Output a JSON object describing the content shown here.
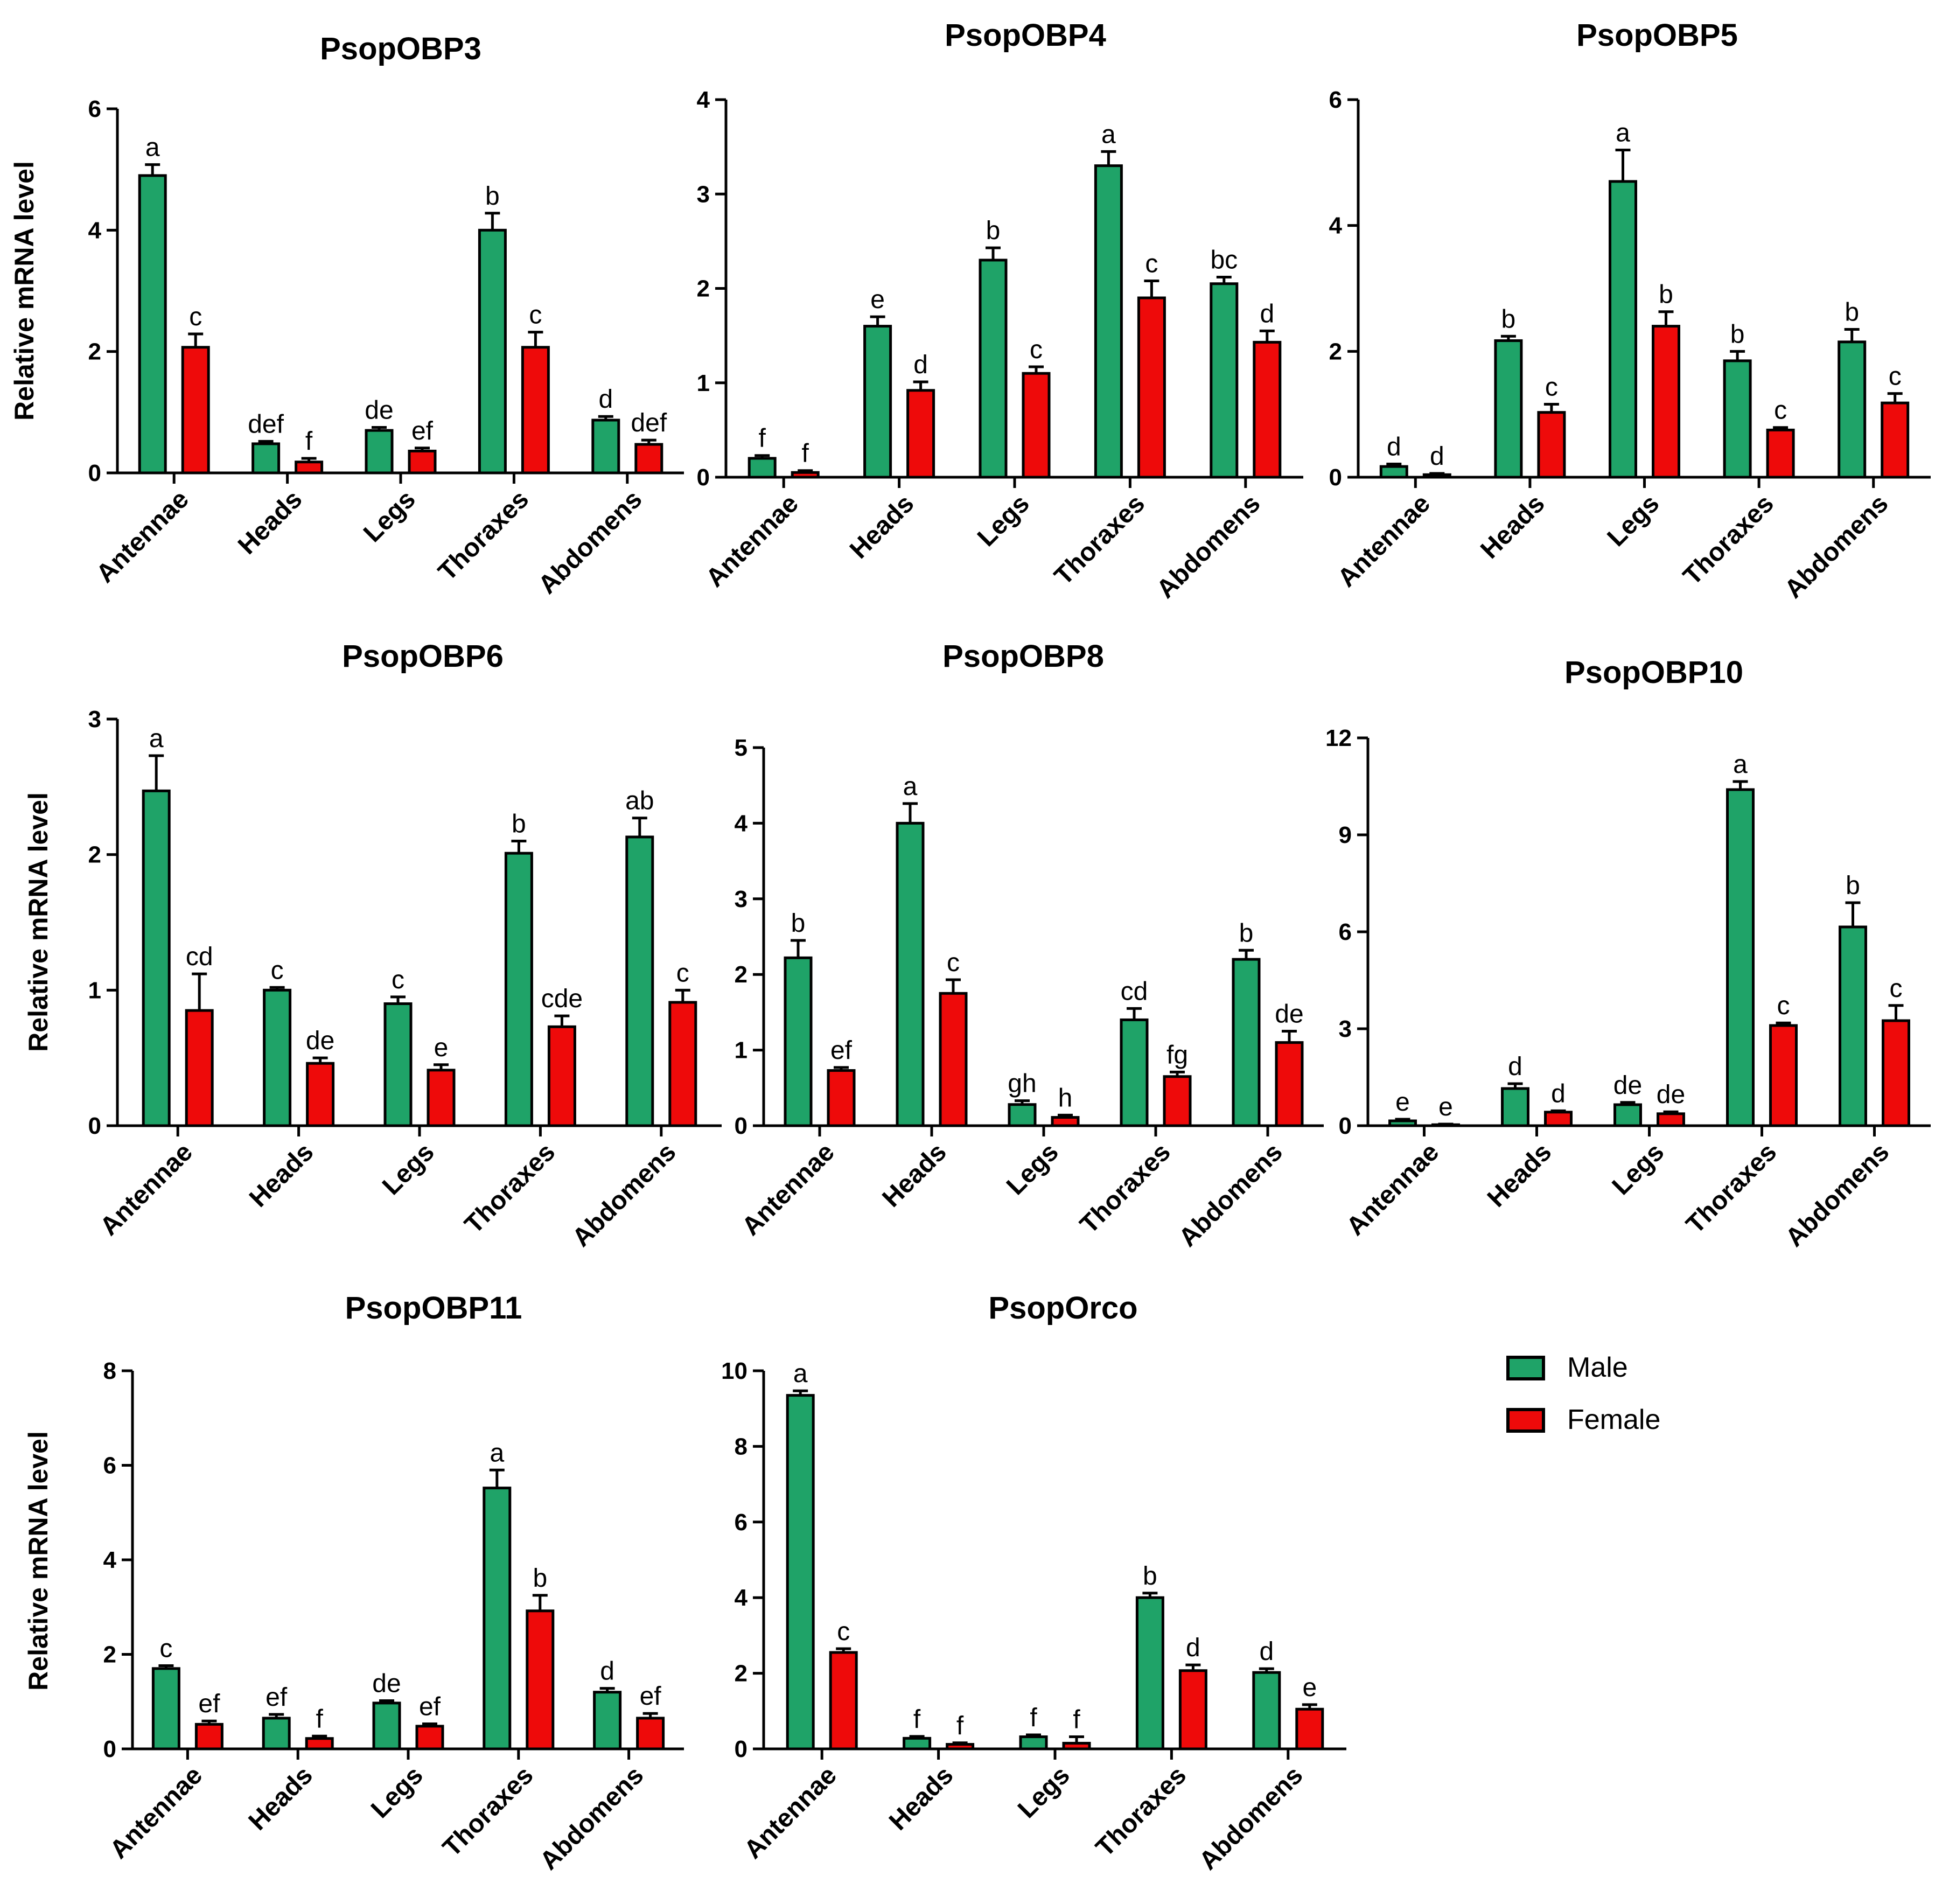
{
  "colors": {
    "male": "#1fa368",
    "female": "#ee0a0a",
    "axis": "#000000"
  },
  "legend": {
    "placement": "right",
    "items": [
      {
        "label": "Male",
        "color": "#1fa368"
      },
      {
        "label": "Female",
        "color": "#ee0a0a"
      }
    ]
  },
  "chart_data": [
    {
      "type": "bar",
      "title": "PsopOBP3",
      "ylabel": "Relative mRNA level",
      "xlabel": "",
      "categories": [
        "Antennae",
        "Heads",
        "Legs",
        "Thoraxes",
        "Abdomens"
      ],
      "ylim": [
        0,
        6
      ],
      "yticks": [
        0,
        2,
        4,
        6
      ],
      "series": [
        {
          "name": "Male",
          "values": [
            4.9,
            0.48,
            0.7,
            4.0,
            0.87
          ],
          "errors": [
            0.18,
            0.04,
            0.05,
            0.28,
            0.06
          ],
          "letters": [
            "a",
            "def",
            "de",
            "b",
            "d"
          ]
        },
        {
          "name": "Female",
          "values": [
            2.07,
            0.18,
            0.36,
            2.07,
            0.47
          ],
          "errors": [
            0.22,
            0.06,
            0.05,
            0.25,
            0.07
          ],
          "letters": [
            "c",
            "f",
            "ef",
            "c",
            "def"
          ]
        }
      ]
    },
    {
      "type": "bar",
      "title": "PsopOBP4",
      "ylabel": "",
      "xlabel": "",
      "categories": [
        "Antennae",
        "Heads",
        "Legs",
        "Thoraxes",
        "Abdomens"
      ],
      "ylim": [
        0,
        4
      ],
      "yticks": [
        0,
        1,
        2,
        3,
        4
      ],
      "series": [
        {
          "name": "Male",
          "values": [
            0.2,
            1.6,
            2.3,
            3.3,
            2.05
          ],
          "errors": [
            0.03,
            0.1,
            0.13,
            0.15,
            0.07
          ],
          "letters": [
            "f",
            "e",
            "b",
            "a",
            "bc"
          ]
        },
        {
          "name": "Female",
          "values": [
            0.05,
            0.92,
            1.1,
            1.9,
            1.43
          ],
          "errors": [
            0.02,
            0.09,
            0.07,
            0.18,
            0.12
          ],
          "letters": [
            "f",
            "d",
            "c",
            "c",
            "d"
          ]
        }
      ]
    },
    {
      "type": "bar",
      "title": "PsopOBP5",
      "ylabel": "",
      "xlabel": "",
      "categories": [
        "Antennae",
        "Heads",
        "Legs",
        "Thoraxes",
        "Abdomens"
      ],
      "ylim": [
        0,
        6
      ],
      "yticks": [
        0,
        2,
        4,
        6
      ],
      "series": [
        {
          "name": "Male",
          "values": [
            0.17,
            2.17,
            4.7,
            1.85,
            2.15
          ],
          "errors": [
            0.04,
            0.07,
            0.5,
            0.15,
            0.2
          ],
          "letters": [
            "d",
            "b",
            "a",
            "b",
            "b"
          ]
        },
        {
          "name": "Female",
          "values": [
            0.04,
            1.03,
            2.4,
            0.75,
            1.18
          ],
          "errors": [
            0.02,
            0.13,
            0.23,
            0.04,
            0.15
          ],
          "letters": [
            "d",
            "c",
            "b",
            "c",
            "c"
          ]
        }
      ]
    },
    {
      "type": "bar",
      "title": "PsopOBP6",
      "ylabel": "Relative mRNA level",
      "xlabel": "",
      "categories": [
        "Antennae",
        "Heads",
        "Legs",
        "Thoraxes",
        "Abdomens"
      ],
      "ylim": [
        0,
        3
      ],
      "yticks": [
        0,
        1,
        2,
        3
      ],
      "series": [
        {
          "name": "Male",
          "values": [
            2.47,
            1.0,
            0.9,
            2.01,
            2.13
          ],
          "errors": [
            0.26,
            0.02,
            0.05,
            0.09,
            0.14
          ],
          "letters": [
            "a",
            "c",
            "c",
            "b",
            "ab"
          ]
        },
        {
          "name": "Female",
          "values": [
            0.85,
            0.46,
            0.41,
            0.73,
            0.91
          ],
          "errors": [
            0.27,
            0.04,
            0.04,
            0.08,
            0.09
          ],
          "letters": [
            "cd",
            "de",
            "e",
            "cde",
            "c"
          ]
        }
      ]
    },
    {
      "type": "bar",
      "title": "PsopOBP8",
      "ylabel": "",
      "xlabel": "",
      "categories": [
        "Antennae",
        "Heads",
        "Legs",
        "Thoraxes",
        "Abdomens"
      ],
      "ylim": [
        0,
        5
      ],
      "yticks": [
        0,
        1,
        2,
        3,
        4,
        5
      ],
      "series": [
        {
          "name": "Male",
          "values": [
            2.22,
            4.0,
            0.28,
            1.4,
            2.2
          ],
          "errors": [
            0.23,
            0.26,
            0.05,
            0.15,
            0.12
          ],
          "letters": [
            "b",
            "a",
            "gh",
            "cd",
            "b"
          ]
        },
        {
          "name": "Female",
          "values": [
            0.73,
            1.75,
            0.11,
            0.65,
            1.1
          ],
          "errors": [
            0.04,
            0.18,
            0.03,
            0.06,
            0.15
          ],
          "letters": [
            "ef",
            "c",
            "h",
            "fg",
            "de"
          ]
        }
      ]
    },
    {
      "type": "bar",
      "title": "PsopOBP10",
      "ylabel": "",
      "xlabel": "",
      "categories": [
        "Antennae",
        "Heads",
        "Legs",
        "Thoraxes",
        "Abdomens"
      ],
      "ylim": [
        0,
        12
      ],
      "yticks": [
        0,
        3,
        6,
        9,
        12
      ],
      "series": [
        {
          "name": "Male",
          "values": [
            0.15,
            1.15,
            0.65,
            10.4,
            6.15
          ],
          "errors": [
            0.05,
            0.15,
            0.07,
            0.25,
            0.75
          ],
          "letters": [
            "e",
            "d",
            "de",
            "a",
            "b"
          ]
        },
        {
          "name": "Female",
          "values": [
            0.03,
            0.42,
            0.37,
            3.1,
            3.25
          ],
          "errors": [
            0.02,
            0.04,
            0.06,
            0.08,
            0.47
          ],
          "letters": [
            "e",
            "d",
            "de",
            "c",
            "c"
          ]
        }
      ]
    },
    {
      "type": "bar",
      "title": "PsopOBP11",
      "ylabel": "Relative mRNA level",
      "xlabel": "",
      "categories": [
        "Antennae",
        "Heads",
        "Legs",
        "Thoraxes",
        "Abdomens"
      ],
      "ylim": [
        0,
        8
      ],
      "yticks": [
        0,
        2,
        4,
        6,
        8
      ],
      "series": [
        {
          "name": "Male",
          "values": [
            1.7,
            0.65,
            0.97,
            5.52,
            1.2
          ],
          "errors": [
            0.06,
            0.08,
            0.05,
            0.38,
            0.08
          ],
          "letters": [
            "c",
            "ef",
            "de",
            "a",
            "d"
          ]
        },
        {
          "name": "Female",
          "values": [
            0.52,
            0.22,
            0.48,
            2.92,
            0.65
          ],
          "errors": [
            0.07,
            0.05,
            0.05,
            0.33,
            0.1
          ],
          "letters": [
            "ef",
            "f",
            "ef",
            "b",
            "ef"
          ]
        }
      ]
    },
    {
      "type": "bar",
      "title": "PsopOrco",
      "ylabel": "",
      "xlabel": "",
      "categories": [
        "Antennae",
        "Heads",
        "Legs",
        "Thoraxes",
        "Abdomens"
      ],
      "ylim": [
        0,
        10
      ],
      "yticks": [
        0,
        2,
        4,
        6,
        8,
        10
      ],
      "series": [
        {
          "name": "Male",
          "values": [
            9.35,
            0.28,
            0.32,
            4.0,
            2.02
          ],
          "errors": [
            0.12,
            0.05,
            0.05,
            0.12,
            0.1
          ],
          "letters": [
            "a",
            "f",
            "f",
            "b",
            "d"
          ]
        },
        {
          "name": "Female",
          "values": [
            2.55,
            0.12,
            0.15,
            2.07,
            1.05
          ],
          "errors": [
            0.1,
            0.04,
            0.17,
            0.15,
            0.12
          ],
          "letters": [
            "c",
            "f",
            "f",
            "d",
            "e"
          ]
        }
      ]
    }
  ]
}
